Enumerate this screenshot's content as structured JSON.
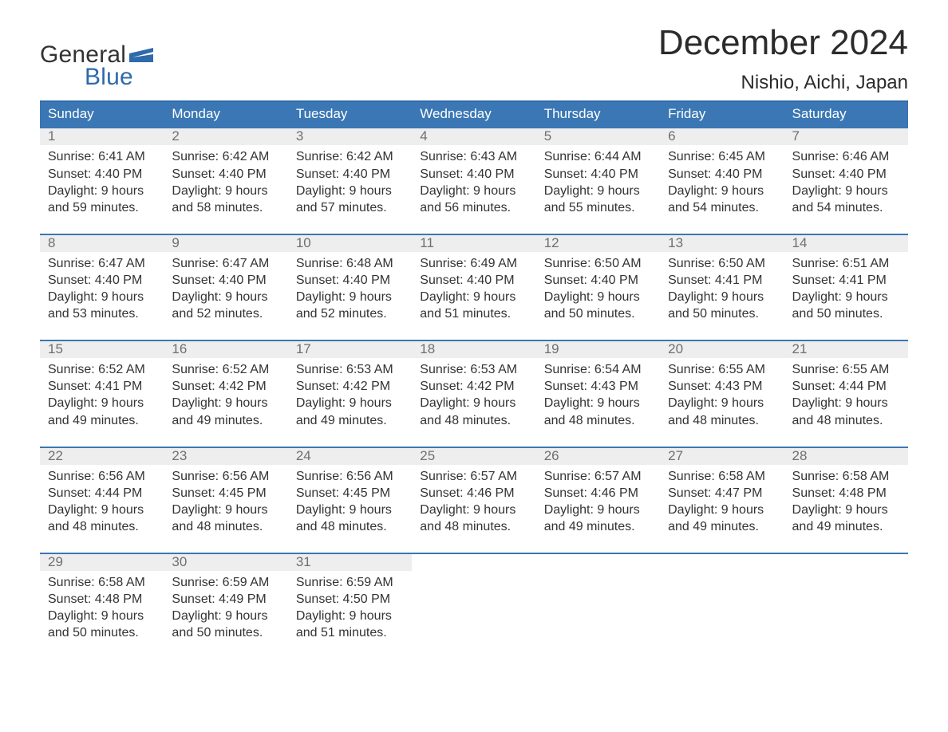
{
  "logo": {
    "word1": "General",
    "word2": "Blue"
  },
  "title": "December 2024",
  "location": "Nishio, Aichi, Japan",
  "colors": {
    "header_bg": "#3a77b4",
    "header_border": "#2f6aa9",
    "daynum_bg": "#eeeeee",
    "daynum_text": "#6f6f6f",
    "body_text": "#333333",
    "logo_blue": "#2f6aa9"
  },
  "day_names": [
    "Sunday",
    "Monday",
    "Tuesday",
    "Wednesday",
    "Thursday",
    "Friday",
    "Saturday"
  ],
  "labels": {
    "sunrise": "Sunrise: ",
    "sunset": "Sunset: ",
    "daylight_prefix": "Daylight: "
  },
  "weeks": [
    [
      {
        "n": "1",
        "sunrise": "6:41 AM",
        "sunset": "4:40 PM",
        "daylight": "9 hours and 59 minutes."
      },
      {
        "n": "2",
        "sunrise": "6:42 AM",
        "sunset": "4:40 PM",
        "daylight": "9 hours and 58 minutes."
      },
      {
        "n": "3",
        "sunrise": "6:42 AM",
        "sunset": "4:40 PM",
        "daylight": "9 hours and 57 minutes."
      },
      {
        "n": "4",
        "sunrise": "6:43 AM",
        "sunset": "4:40 PM",
        "daylight": "9 hours and 56 minutes."
      },
      {
        "n": "5",
        "sunrise": "6:44 AM",
        "sunset": "4:40 PM",
        "daylight": "9 hours and 55 minutes."
      },
      {
        "n": "6",
        "sunrise": "6:45 AM",
        "sunset": "4:40 PM",
        "daylight": "9 hours and 54 minutes."
      },
      {
        "n": "7",
        "sunrise": "6:46 AM",
        "sunset": "4:40 PM",
        "daylight": "9 hours and 54 minutes."
      }
    ],
    [
      {
        "n": "8",
        "sunrise": "6:47 AM",
        "sunset": "4:40 PM",
        "daylight": "9 hours and 53 minutes."
      },
      {
        "n": "9",
        "sunrise": "6:47 AM",
        "sunset": "4:40 PM",
        "daylight": "9 hours and 52 minutes."
      },
      {
        "n": "10",
        "sunrise": "6:48 AM",
        "sunset": "4:40 PM",
        "daylight": "9 hours and 52 minutes."
      },
      {
        "n": "11",
        "sunrise": "6:49 AM",
        "sunset": "4:40 PM",
        "daylight": "9 hours and 51 minutes."
      },
      {
        "n": "12",
        "sunrise": "6:50 AM",
        "sunset": "4:40 PM",
        "daylight": "9 hours and 50 minutes."
      },
      {
        "n": "13",
        "sunrise": "6:50 AM",
        "sunset": "4:41 PM",
        "daylight": "9 hours and 50 minutes."
      },
      {
        "n": "14",
        "sunrise": "6:51 AM",
        "sunset": "4:41 PM",
        "daylight": "9 hours and 50 minutes."
      }
    ],
    [
      {
        "n": "15",
        "sunrise": "6:52 AM",
        "sunset": "4:41 PM",
        "daylight": "9 hours and 49 minutes."
      },
      {
        "n": "16",
        "sunrise": "6:52 AM",
        "sunset": "4:42 PM",
        "daylight": "9 hours and 49 minutes."
      },
      {
        "n": "17",
        "sunrise": "6:53 AM",
        "sunset": "4:42 PM",
        "daylight": "9 hours and 49 minutes."
      },
      {
        "n": "18",
        "sunrise": "6:53 AM",
        "sunset": "4:42 PM",
        "daylight": "9 hours and 48 minutes."
      },
      {
        "n": "19",
        "sunrise": "6:54 AM",
        "sunset": "4:43 PM",
        "daylight": "9 hours and 48 minutes."
      },
      {
        "n": "20",
        "sunrise": "6:55 AM",
        "sunset": "4:43 PM",
        "daylight": "9 hours and 48 minutes."
      },
      {
        "n": "21",
        "sunrise": "6:55 AM",
        "sunset": "4:44 PM",
        "daylight": "9 hours and 48 minutes."
      }
    ],
    [
      {
        "n": "22",
        "sunrise": "6:56 AM",
        "sunset": "4:44 PM",
        "daylight": "9 hours and 48 minutes."
      },
      {
        "n": "23",
        "sunrise": "6:56 AM",
        "sunset": "4:45 PM",
        "daylight": "9 hours and 48 minutes."
      },
      {
        "n": "24",
        "sunrise": "6:56 AM",
        "sunset": "4:45 PM",
        "daylight": "9 hours and 48 minutes."
      },
      {
        "n": "25",
        "sunrise": "6:57 AM",
        "sunset": "4:46 PM",
        "daylight": "9 hours and 48 minutes."
      },
      {
        "n": "26",
        "sunrise": "6:57 AM",
        "sunset": "4:46 PM",
        "daylight": "9 hours and 49 minutes."
      },
      {
        "n": "27",
        "sunrise": "6:58 AM",
        "sunset": "4:47 PM",
        "daylight": "9 hours and 49 minutes."
      },
      {
        "n": "28",
        "sunrise": "6:58 AM",
        "sunset": "4:48 PM",
        "daylight": "9 hours and 49 minutes."
      }
    ],
    [
      {
        "n": "29",
        "sunrise": "6:58 AM",
        "sunset": "4:48 PM",
        "daylight": "9 hours and 50 minutes."
      },
      {
        "n": "30",
        "sunrise": "6:59 AM",
        "sunset": "4:49 PM",
        "daylight": "9 hours and 50 minutes."
      },
      {
        "n": "31",
        "sunrise": "6:59 AM",
        "sunset": "4:50 PM",
        "daylight": "9 hours and 51 minutes."
      },
      null,
      null,
      null,
      null
    ]
  ]
}
